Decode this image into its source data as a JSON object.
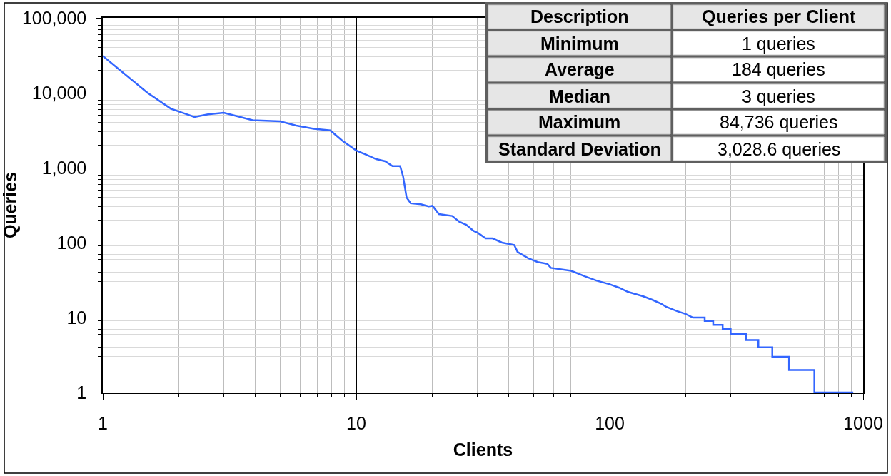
{
  "chart_data": {
    "type": "line",
    "xlabel": "Clients",
    "ylabel": "Queries",
    "annotations": [
      "Description",
      "Queries per Client",
      "Minimum",
      "1 queries",
      "Average",
      "184 queries",
      "Median",
      "3 queries",
      "Maximum",
      "84,736 queries",
      "Standard Deviation",
      "3,028.6 queries"
    ],
    "log": "xy",
    "grid": true,
    "xlim": [
      1,
      1000
    ],
    "xticks": [
      1,
      {
        "value": 2,
        "label": null
      },
      {
        "value": 3,
        "label": null
      },
      {
        "value": 4,
        "label": null
      },
      {
        "value": 5,
        "label": null
      },
      {
        "value": 6,
        "label": null
      },
      {
        "value": 7,
        "label": null
      },
      {
        "value": 8,
        "label": null
      },
      {
        "value": 9,
        "label": null
      },
      10,
      {
        "value": 20,
        "label": null
      },
      {
        "value": 30,
        "label": null
      },
      {
        "value": 40,
        "label": null
      },
      {
        "value": 50,
        "label": null
      },
      {
        "value": 60,
        "label": null
      },
      {
        "value": 70,
        "label": null
      },
      {
        "value": 80,
        "label": null
      },
      {
        "value": 90,
        "label": null
      },
      100,
      {
        "value": 200,
        "label": null
      },
      {
        "value": 300,
        "label": null
      },
      {
        "value": 400,
        "label": null
      },
      {
        "value": 500,
        "label": null
      },
      {
        "value": 600,
        "label": null
      },
      {
        "value": 700,
        "label": null
      },
      {
        "value": 800,
        "label": null
      },
      {
        "value": 900,
        "label": null
      },
      1000
    ],
    "ylim": [
      1,
      100000
    ],
    "yticks": [
      1,
      {
        "value": 2,
        "label": null
      },
      {
        "value": 3,
        "label": null
      },
      {
        "value": 4,
        "label": null
      },
      {
        "value": 5,
        "label": null
      },
      {
        "value": 6,
        "label": null
      },
      {
        "value": 7,
        "label": null
      },
      {
        "value": 8,
        "label": null
      },
      {
        "value": 9,
        "label": null
      },
      10,
      {
        "value": 20,
        "label": null
      },
      {
        "value": 30,
        "label": null
      },
      {
        "value": 40,
        "label": null
      },
      {
        "value": 50,
        "label": null
      },
      {
        "value": 60,
        "label": null
      },
      {
        "value": 70,
        "label": null
      },
      {
        "value": 80,
        "label": null
      },
      {
        "value": 90,
        "label": null
      },
      100,
      {
        "value": 200,
        "label": null
      },
      {
        "value": 300,
        "label": null
      },
      {
        "value": 400,
        "label": null
      },
      {
        "value": 500,
        "label": null
      },
      {
        "value": 600,
        "label": null
      },
      {
        "value": 700,
        "label": null
      },
      {
        "value": 800,
        "label": null
      },
      {
        "value": 900,
        "label": null
      },
      {
        "value": 1000,
        "label": "1,000"
      },
      {
        "value": 2000,
        "label": null
      },
      {
        "value": 3000,
        "label": null
      },
      {
        "value": 4000,
        "label": null
      },
      {
        "value": 5000,
        "label": null
      },
      {
        "value": 6000,
        "label": null
      },
      {
        "value": 7000,
        "label": null
      },
      {
        "value": 8000,
        "label": null
      },
      {
        "value": 9000,
        "label": null
      },
      {
        "value": 10000,
        "label": "10,000"
      },
      {
        "value": 20000,
        "label": null
      },
      {
        "value": 30000,
        "label": null
      },
      {
        "value": 40000,
        "label": null
      },
      {
        "value": 50000,
        "label": null
      },
      {
        "value": 60000,
        "label": null
      },
      {
        "value": 70000,
        "label": null
      },
      {
        "value": 80000,
        "label": null
      },
      {
        "value": 90000,
        "label": null
      },
      {
        "value": 100000,
        "label": "100,000"
      }
    ],
    "series": [
      {
        "color": "#3366ff",
        "x": [
          1,
          1.5,
          1.86,
          2.0,
          2.3,
          2.6,
          3.0,
          3.4,
          3.9,
          5.0,
          5.8,
          6.8,
          7.9,
          8.8,
          10,
          12,
          13,
          13.9,
          14.9,
          15.3,
          15.8,
          16.4,
          18,
          19.3,
          20,
          21.2,
          23.9,
          25.5,
          27.2,
          29,
          30.3,
          32.4,
          34.5,
          37.6,
          42,
          43.3,
          47.7,
          52,
          56.8,
          58.6,
          70.5,
          80,
          89,
          100,
          109,
          118,
          135,
          147,
          160,
          167,
          184,
          199,
          213,
          237,
          237,
          256,
          256,
          279,
          279,
          300,
          300,
          345,
          345,
          386,
          386,
          438,
          438,
          510,
          510,
          642,
          642,
          914
        ],
        "values": [
          31000,
          10000,
          6100,
          5600,
          4750,
          5150,
          5400,
          4850,
          4300,
          4150,
          3650,
          3300,
          3150,
          2300,
          1700,
          1300,
          1220,
          1050,
          1050,
          770,
          400,
          335,
          325,
          305,
          310,
          240,
          227,
          190,
          173,
          144,
          134,
          114,
          114,
          100,
          93,
          75,
          62,
          55,
          52,
          46,
          42,
          35.4,
          31,
          27.8,
          25,
          22,
          19.3,
          17.3,
          15.2,
          13.9,
          12.2,
          11.2,
          10,
          10,
          9,
          9,
          8,
          8,
          7,
          7,
          6,
          6,
          5,
          5,
          4,
          4,
          3,
          3,
          2,
          2,
          1,
          1
        ]
      }
    ]
  }
}
